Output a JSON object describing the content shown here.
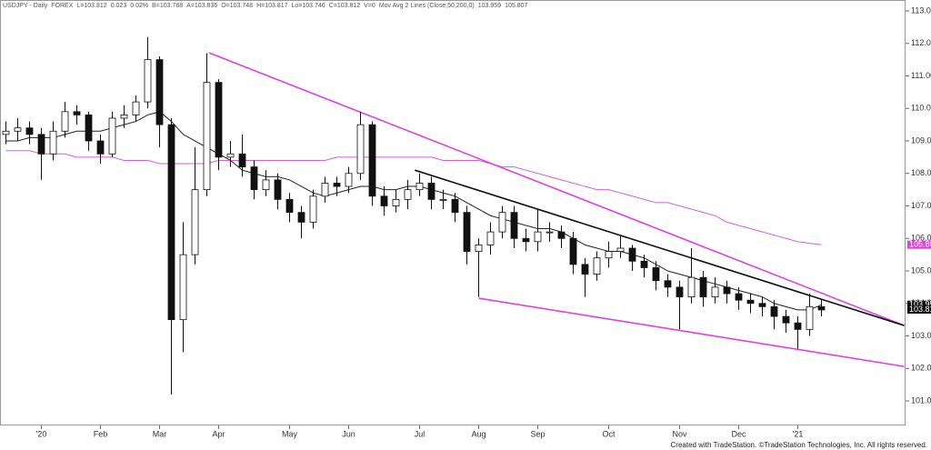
{
  "chart_data": {
    "type": "candlestick",
    "header": [
      "USDJPY - Daily",
      "FOREX",
      "L=103.812",
      "0.023",
      "0.02%",
      "B=103.788",
      "A=103.836",
      "O=103.748",
      "H=103.817",
      "Lo=103.746",
      "C=103.812",
      "V=0",
      "Mov Avg 2 Lines (Close,50,200,0)",
      "103.959",
      "105.807"
    ],
    "footer": "Created with TradeStation. ©TradeStation Technologies, Inc. All rights reserved.",
    "categories": [
      null,
      null,
      null,
      "'20",
      null,
      null,
      null,
      null,
      "Feb",
      null,
      null,
      null,
      null,
      "Mar",
      null,
      null,
      null,
      null,
      "Apr",
      null,
      null,
      null,
      null,
      null,
      "May",
      null,
      null,
      null,
      null,
      "Jun",
      null,
      null,
      null,
      null,
      null,
      "Jul",
      null,
      null,
      null,
      null,
      "Aug",
      null,
      null,
      null,
      null,
      "Sep",
      null,
      null,
      null,
      null,
      null,
      "Oct",
      null,
      null,
      null,
      null,
      null,
      "Nov",
      null,
      null,
      null,
      null,
      "Dec",
      null,
      null,
      null,
      null,
      "'21",
      null,
      null
    ],
    "candles": {
      "open": [
        109.2,
        109.3,
        109.4,
        109.2,
        108.6,
        109.3,
        109.9,
        109.8,
        109.0,
        108.6,
        109.7,
        109.8,
        110.2,
        111.5,
        109.5,
        103.5,
        105.5,
        107.5,
        110.8,
        108.5,
        108.6,
        108.2,
        107.5,
        107.8,
        107.2,
        106.8,
        106.5,
        107.3,
        107.7,
        107.6,
        108.0,
        109.5,
        107.3,
        107.0,
        107.2,
        107.5,
        107.7,
        107.2,
        107.2,
        106.8,
        105.6,
        105.8,
        106.2,
        106.8,
        106.0,
        105.9,
        106.2,
        106.2,
        106.0,
        105.2,
        104.9,
        105.4,
        105.6,
        105.7,
        105.3,
        105.1,
        104.7,
        104.5,
        104.2,
        104.8,
        104.2,
        104.5,
        104.3,
        104.1,
        104.0,
        103.9,
        103.6,
        103.4,
        103.2,
        103.9
      ],
      "high": [
        109.6,
        109.7,
        109.6,
        109.4,
        109.6,
        110.2,
        110.1,
        109.9,
        109.2,
        109.9,
        110.1,
        110.4,
        112.2,
        111.6,
        109.7,
        106.5,
        108.8,
        111.7,
        110.9,
        109.0,
        109.2,
        108.4,
        108.1,
        108.0,
        107.4,
        107.0,
        107.5,
        107.9,
        107.9,
        108.2,
        109.9,
        109.6,
        107.6,
        107.5,
        107.8,
        108.0,
        107.9,
        107.5,
        107.4,
        107.0,
        106.0,
        106.5,
        107.0,
        107.0,
        106.3,
        106.9,
        106.5,
        106.4,
        106.2,
        105.4,
        105.6,
        105.9,
        106.1,
        105.8,
        105.5,
        105.3,
        104.9,
        104.7,
        105.7,
        105.0,
        104.8,
        104.7,
        104.5,
        104.3,
        104.2,
        104.1,
        103.8,
        103.6,
        104.3,
        104.1
      ],
      "low": [
        108.9,
        109.0,
        108.9,
        107.8,
        108.4,
        109.1,
        109.5,
        108.7,
        108.3,
        108.5,
        109.4,
        109.6,
        110.0,
        108.8,
        101.2,
        102.5,
        105.2,
        107.3,
        108.1,
        108.2,
        107.9,
        107.2,
        107.3,
        106.9,
        106.5,
        106.0,
        106.3,
        107.1,
        107.3,
        107.4,
        107.8,
        107.0,
        106.7,
        106.8,
        106.9,
        107.3,
        106.9,
        106.9,
        106.5,
        105.2,
        104.2,
        105.5,
        106.0,
        105.7,
        105.6,
        105.6,
        105.9,
        105.7,
        104.9,
        104.2,
        104.7,
        105.1,
        105.4,
        105.0,
        104.8,
        104.4,
        104.2,
        103.2,
        104.0,
        103.9,
        104.0,
        104.0,
        103.8,
        103.7,
        103.6,
        103.2,
        103.1,
        102.6,
        103.0,
        103.6
      ],
      "close": [
        109.3,
        109.4,
        109.2,
        108.6,
        109.3,
        109.9,
        109.8,
        109.0,
        108.6,
        109.7,
        109.8,
        110.2,
        111.5,
        109.5,
        103.5,
        105.5,
        107.5,
        110.8,
        108.5,
        108.6,
        108.2,
        107.5,
        107.8,
        107.2,
        106.8,
        106.5,
        107.3,
        107.7,
        107.6,
        108.0,
        109.5,
        107.3,
        107.0,
        107.2,
        107.5,
        107.7,
        107.2,
        107.2,
        106.8,
        105.6,
        105.8,
        106.2,
        106.8,
        106.0,
        105.9,
        106.2,
        106.2,
        106.0,
        105.2,
        104.9,
        105.4,
        105.6,
        105.7,
        105.3,
        105.1,
        104.7,
        104.5,
        104.2,
        104.8,
        104.2,
        104.5,
        104.3,
        104.1,
        104.0,
        103.9,
        103.6,
        103.4,
        103.2,
        103.9,
        103.8
      ]
    },
    "series": [
      {
        "color": "#222222",
        "values": [
          109.0,
          109.0,
          109.1,
          109.1,
          109.1,
          109.2,
          109.3,
          109.3,
          109.3,
          109.4,
          109.5,
          109.6,
          109.8,
          109.9,
          109.6,
          109.2,
          109.0,
          108.8,
          108.6,
          108.4,
          108.1,
          108.0,
          107.9,
          107.9,
          107.8,
          107.6,
          107.4,
          107.3,
          107.4,
          107.5,
          107.6,
          107.6,
          107.5,
          107.5,
          107.6,
          107.6,
          107.5,
          107.4,
          107.3,
          107.1,
          106.9,
          106.7,
          106.6,
          106.5,
          106.4,
          106.3,
          106.3,
          106.2,
          106.0,
          105.8,
          105.7,
          105.6,
          105.6,
          105.5,
          105.4,
          105.2,
          105.0,
          104.9,
          104.8,
          104.7,
          104.6,
          104.5,
          104.4,
          104.3,
          104.2,
          104.0,
          103.9,
          103.8,
          103.8,
          103.959
        ]
      },
      {
        "color": "#d65fd6",
        "values": [
          108.7,
          108.7,
          108.7,
          108.6,
          108.6,
          108.6,
          108.5,
          108.5,
          108.5,
          108.5,
          108.4,
          108.4,
          108.4,
          108.3,
          108.3,
          108.3,
          108.3,
          108.3,
          108.4,
          108.4,
          108.4,
          108.4,
          108.4,
          108.4,
          108.4,
          108.4,
          108.4,
          108.4,
          108.5,
          108.5,
          108.5,
          108.5,
          108.5,
          108.5,
          108.5,
          108.5,
          108.5,
          108.4,
          108.4,
          108.4,
          108.4,
          108.3,
          108.2,
          108.2,
          108.1,
          108.0,
          107.9,
          107.8,
          107.7,
          107.6,
          107.5,
          107.5,
          107.4,
          107.3,
          107.2,
          107.1,
          107.1,
          107.0,
          106.9,
          106.8,
          106.7,
          106.5,
          106.4,
          106.3,
          106.2,
          106.1,
          106.0,
          105.9,
          105.85,
          105.807
        ]
      }
    ],
    "trendlines": [
      {
        "color": "#e040e0",
        "points": [
          [
            17.2,
            111.71
          ],
          [
            76.0,
            103.32
          ]
        ]
      },
      {
        "color": "#111111",
        "points": [
          [
            34.6,
            108.1
          ],
          [
            76.0,
            103.32
          ]
        ]
      },
      {
        "color": "#e040e0",
        "points": [
          [
            40.0,
            104.16
          ],
          [
            76.0,
            102.06
          ]
        ]
      }
    ],
    "price_markers": [
      {
        "value": 105.807,
        "color": "#e040e0"
      },
      {
        "value": 103.959,
        "color": "#111111"
      },
      {
        "value": 103.812,
        "color": "#111111"
      }
    ],
    "ylim": [
      100.245,
      113.336
    ],
    "yticks": [
      {
        "value": 101,
        "label": "101.000"
      },
      {
        "value": 102,
        "label": "102.000"
      },
      {
        "value": 103,
        "label": "103.000"
      },
      {
        "value": 104,
        "label": "104.000"
      },
      {
        "value": 105,
        "label": "105.000"
      },
      {
        "value": 106,
        "label": "106.000"
      },
      {
        "value": 107,
        "label": "107.000"
      },
      {
        "value": 108,
        "label": "108.000"
      },
      {
        "value": 109,
        "label": "109.000"
      },
      {
        "value": 110,
        "label": "110.000"
      },
      {
        "value": 111,
        "label": "111.000"
      },
      {
        "value": 112,
        "label": "112.000"
      },
      {
        "value": 113,
        "label": "113.000"
      }
    ]
  }
}
